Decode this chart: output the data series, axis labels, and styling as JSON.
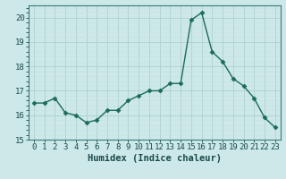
{
  "x": [
    0,
    1,
    2,
    3,
    4,
    5,
    6,
    7,
    8,
    9,
    10,
    11,
    12,
    13,
    14,
    15,
    16,
    17,
    18,
    19,
    20,
    21,
    22,
    23
  ],
  "y": [
    16.5,
    16.5,
    16.7,
    16.1,
    16.0,
    15.7,
    15.8,
    16.2,
    16.2,
    16.6,
    16.8,
    17.0,
    17.0,
    17.3,
    17.3,
    19.9,
    20.2,
    18.6,
    18.2,
    17.5,
    17.2,
    16.7,
    15.9,
    15.5
  ],
  "line_color": "#1a6b5a",
  "marker": "D",
  "marker_size": 2.5,
  "bg_color": "#cce8e8",
  "grid_color": "#b0d0d0",
  "grid_minor_color": "#c8e0e0",
  "xlabel": "Humidex (Indice chaleur)",
  "ylim": [
    15,
    20.5
  ],
  "xlim": [
    -0.5,
    23.5
  ],
  "yticks": [
    15,
    16,
    17,
    18,
    19,
    20
  ],
  "xticks": [
    0,
    1,
    2,
    3,
    4,
    5,
    6,
    7,
    8,
    9,
    10,
    11,
    12,
    13,
    14,
    15,
    16,
    17,
    18,
    19,
    20,
    21,
    22,
    23
  ],
  "tick_label_size": 6.5,
  "xlabel_size": 7.5,
  "spine_color": "#3a7a7a",
  "tick_color": "#1a4a4a"
}
